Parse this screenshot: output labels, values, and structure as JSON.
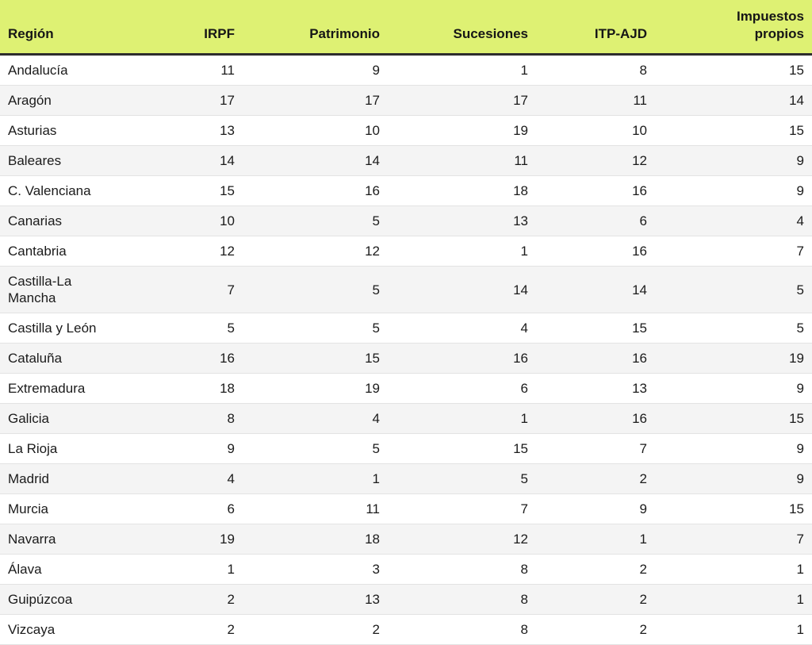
{
  "colors": {
    "header_bg": "#def173",
    "header_border": "#2d2d2d",
    "row_alt_bg": "#f4f4f4",
    "row_border": "#e3e3e3",
    "text": "#1b1b1b"
  },
  "chart_data": {
    "type": "table",
    "title": "",
    "columns": [
      {
        "label": "Región",
        "align": "left",
        "wrap": false
      },
      {
        "label": "IRPF",
        "align": "right",
        "wrap": false
      },
      {
        "label": "Patrimonio",
        "align": "right",
        "wrap": false
      },
      {
        "label": "Sucesiones",
        "align": "right",
        "wrap": false
      },
      {
        "label": "ITP-AJD",
        "align": "right",
        "wrap": false
      },
      {
        "label": "Impuestos propios",
        "align": "right",
        "wrap": true
      }
    ],
    "rows": [
      {
        "region": "Andalucía",
        "values": [
          11,
          9,
          1,
          8,
          15
        ]
      },
      {
        "region": "Aragón",
        "values": [
          17,
          17,
          17,
          11,
          14
        ]
      },
      {
        "region": "Asturias",
        "values": [
          13,
          10,
          19,
          10,
          15
        ]
      },
      {
        "region": "Baleares",
        "values": [
          14,
          14,
          11,
          12,
          9
        ]
      },
      {
        "region": "C. Valenciana",
        "values": [
          15,
          16,
          18,
          16,
          9
        ]
      },
      {
        "region": "Canarias",
        "values": [
          10,
          5,
          13,
          6,
          4
        ]
      },
      {
        "region": "Cantabria",
        "values": [
          12,
          12,
          1,
          16,
          7
        ]
      },
      {
        "region": "Castilla-La Mancha",
        "values": [
          7,
          5,
          14,
          14,
          5
        ]
      },
      {
        "region": "Castilla y León",
        "values": [
          5,
          5,
          4,
          15,
          5
        ]
      },
      {
        "region": "Cataluña",
        "values": [
          16,
          15,
          16,
          16,
          19
        ]
      },
      {
        "region": "Extremadura",
        "values": [
          18,
          19,
          6,
          13,
          9
        ]
      },
      {
        "region": "Galicia",
        "values": [
          8,
          4,
          1,
          16,
          15
        ]
      },
      {
        "region": "La Rioja",
        "values": [
          9,
          5,
          15,
          7,
          9
        ]
      },
      {
        "region": "Madrid",
        "values": [
          4,
          1,
          5,
          2,
          9
        ]
      },
      {
        "region": "Murcia",
        "values": [
          6,
          11,
          7,
          9,
          15
        ]
      },
      {
        "region": "Navarra",
        "values": [
          19,
          18,
          12,
          1,
          7
        ]
      },
      {
        "region": "Álava",
        "values": [
          1,
          3,
          8,
          2,
          1
        ]
      },
      {
        "region": "Guipúzcoa",
        "values": [
          2,
          13,
          8,
          2,
          1
        ]
      },
      {
        "region": "Vizcaya",
        "values": [
          2,
          2,
          8,
          2,
          1
        ]
      }
    ]
  }
}
